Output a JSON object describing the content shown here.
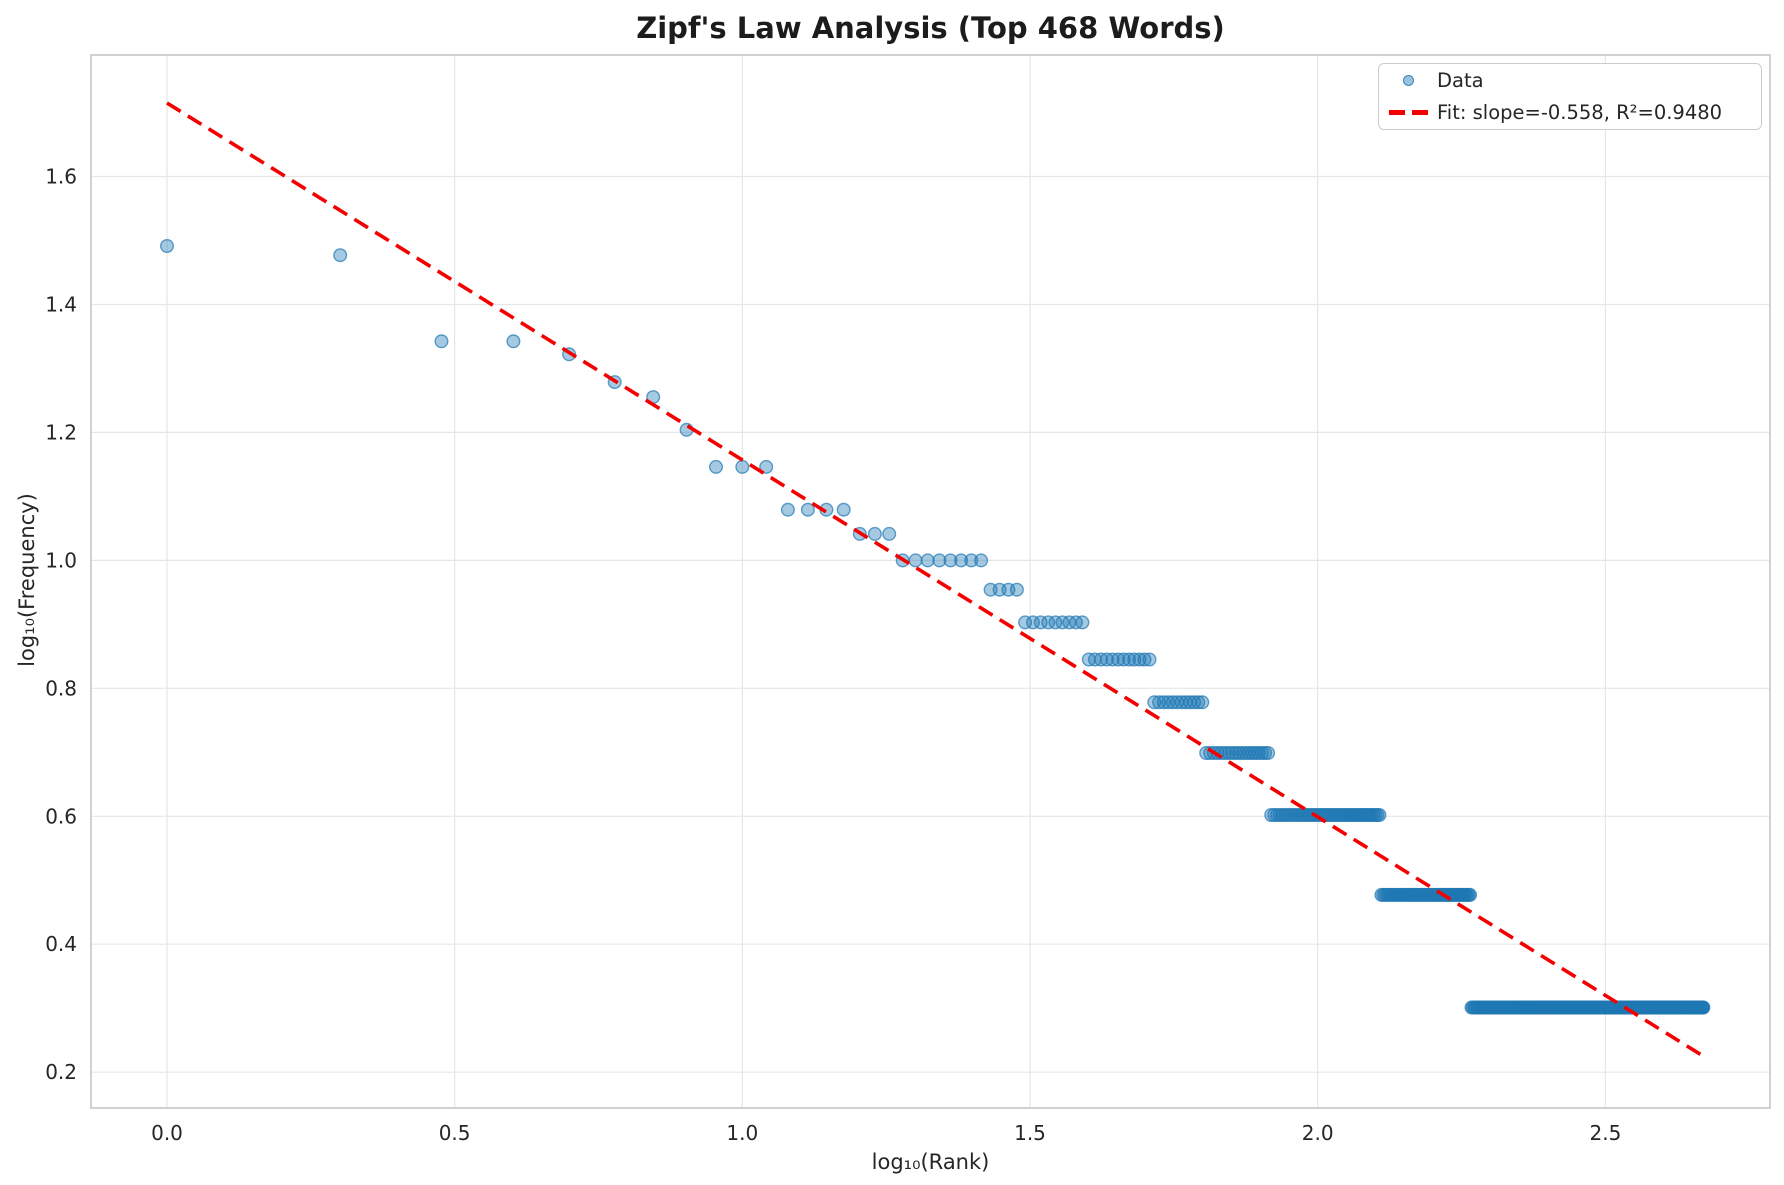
{
  "figure": {
    "title": "Zipf's Law Analysis (Top 468 Words)"
  },
  "chart_data": {
    "type": "scatter",
    "title": "Zipf's Law Analysis (Top 468 Words)",
    "xlabel": "log₁₀(Rank)",
    "ylabel": "log₁₀(Frequency)",
    "xlim": [
      -0.132,
      2.786
    ],
    "ylim": [
      0.144,
      1.79
    ],
    "xticks": [
      0.0,
      0.5,
      1.0,
      1.5,
      2.0,
      2.5
    ],
    "yticks": [
      0.2,
      0.4,
      0.6,
      0.8,
      1.0,
      1.2,
      1.4,
      1.6
    ],
    "grid": true,
    "total_words": 468,
    "colors": {
      "scatter": "#1f77b4",
      "fit": "#f40000",
      "grid": "#e6e6e6",
      "spine": "#cccccc",
      "text": "#262626"
    },
    "series": [
      {
        "name": "Data",
        "kind": "scatter",
        "color": "#1f77b4",
        "marker_alpha": 0.4,
        "x_axis_meaning": "log10(rank)",
        "y_axis_meaning": "log10(frequency)",
        "rank_frequency_bands": [
          {
            "freq": 31,
            "ranks": [
              1,
              1
            ]
          },
          {
            "freq": 30,
            "ranks": [
              2,
              2
            ]
          },
          {
            "freq": 22,
            "ranks": [
              3,
              4
            ]
          },
          {
            "freq": 21,
            "ranks": [
              5,
              5
            ]
          },
          {
            "freq": 19,
            "ranks": [
              6,
              6
            ]
          },
          {
            "freq": 18,
            "ranks": [
              7,
              7
            ]
          },
          {
            "freq": 16,
            "ranks": [
              8,
              8
            ]
          },
          {
            "freq": 14,
            "ranks": [
              9,
              11
            ]
          },
          {
            "freq": 12,
            "ranks": [
              12,
              15
            ]
          },
          {
            "freq": 11,
            "ranks": [
              16,
              18
            ]
          },
          {
            "freq": 10,
            "ranks": [
              19,
              26
            ]
          },
          {
            "freq": 9,
            "ranks": [
              27,
              30
            ]
          },
          {
            "freq": 8,
            "ranks": [
              31,
              39
            ]
          },
          {
            "freq": 7,
            "ranks": [
              40,
              51
            ]
          },
          {
            "freq": 6,
            "ranks": [
              52,
              63
            ]
          },
          {
            "freq": 5,
            "ranks": [
              64,
              82
            ]
          },
          {
            "freq": 4,
            "ranks": [
              83,
              128
            ]
          },
          {
            "freq": 3,
            "ranks": [
              129,
              184
            ]
          },
          {
            "freq": 2,
            "ranks": [
              185,
              468
            ]
          }
        ]
      },
      {
        "name": "Fit: slope=-0.558, R²=0.9480",
        "kind": "line",
        "style": "dashed",
        "color": "#f40000",
        "slope": -0.558,
        "intercept": 1.715,
        "r_squared": 0.948,
        "x_start": 0.0,
        "x_end": 2.6702
      }
    ],
    "legend": {
      "position": "upper right",
      "entries": [
        "Data",
        "Fit: slope=-0.558, R²=0.9480"
      ]
    }
  }
}
